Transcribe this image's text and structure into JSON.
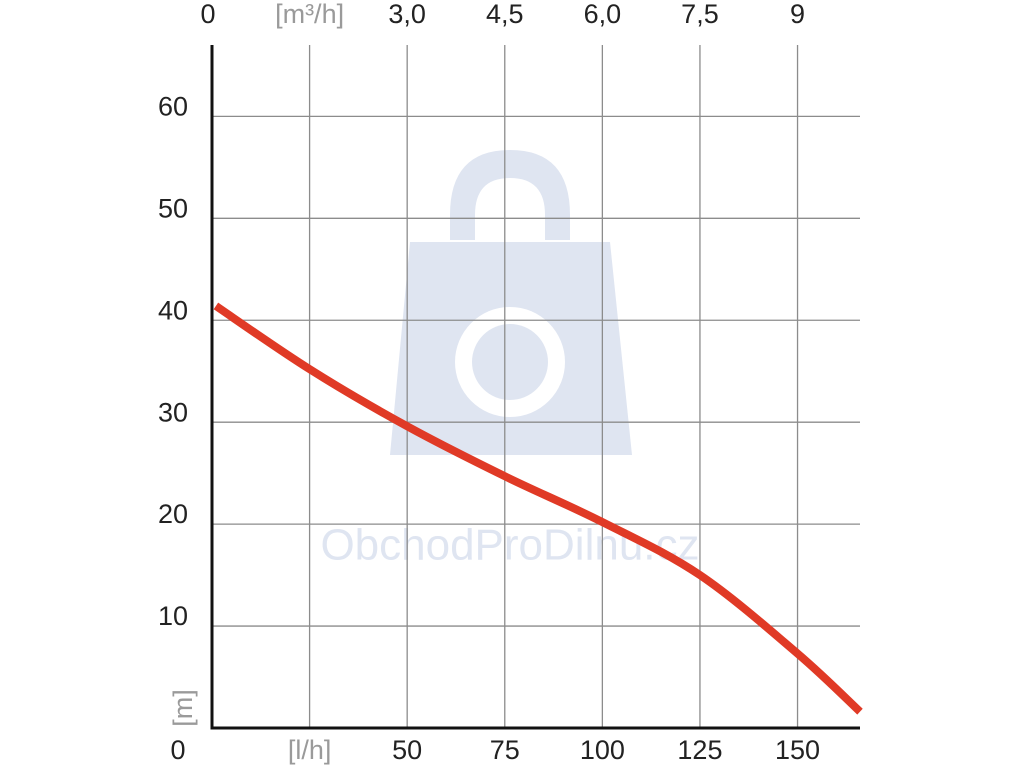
{
  "chart_data": {
    "type": "line",
    "x": [
      1,
      25,
      50,
      75,
      100,
      125,
      150,
      166
    ],
    "series": [
      {
        "color": "#e03a26",
        "values": [
          41.4,
          35.2,
          29.6,
          24.7,
          20.2,
          15,
          7.3,
          1.6
        ]
      }
    ],
    "xlim": [
      0,
      166
    ],
    "xticks": [
      {
        "value": 25,
        "label": "[l/h]"
      },
      50,
      75,
      100,
      125,
      150
    ],
    "x2lim": [
      0,
      9.96
    ],
    "x2ticks": [
      0,
      {
        "value": 1.5,
        "label": "[m³/h]"
      },
      {
        "value": 3,
        "label": "3,0"
      },
      {
        "value": 4.5,
        "label": "4,5"
      },
      {
        "value": 6,
        "label": "6,0"
      },
      {
        "value": 7.5,
        "label": "7,5"
      },
      9
    ],
    "ylim": [
      0,
      67
    ],
    "yticks": [
      0,
      10,
      20,
      30,
      40,
      50,
      60
    ],
    "ylabel": "[m]",
    "grid": true,
    "watermark": "ObchodProDilnu.cz"
  }
}
